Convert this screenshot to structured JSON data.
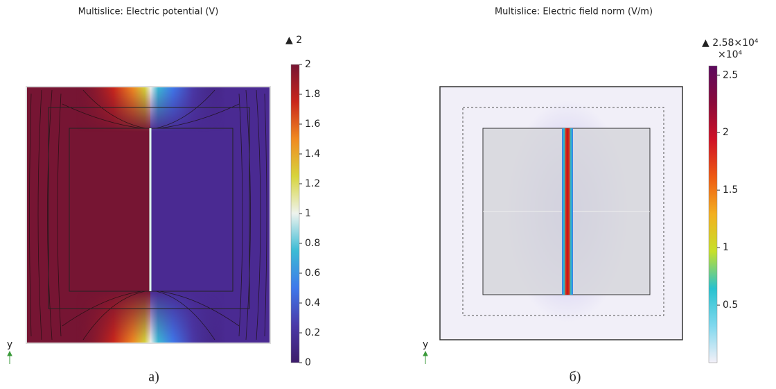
{
  "panels": [
    {
      "title": "Multislice: Electric potential (V)",
      "max_label": "▲ 2",
      "colorbar": {
        "lim": [
          0,
          2
        ],
        "ticks": [
          0,
          0.2,
          0.4,
          0.6,
          0.8,
          1,
          1.2,
          1.4,
          1.6,
          1.8,
          2
        ],
        "colormap": [
          "#3d1c6a",
          "#4a3aa8",
          "#3f78ea",
          "#3bbbd5",
          "#eef3ee",
          "#d7d43c",
          "#f08a22",
          "#c9261c",
          "#761533"
        ]
      },
      "axis_label": "y",
      "caption": "а)"
    },
    {
      "title": "Multislice: Electric field norm (V/m)",
      "max_label": "▲ 2.58×10⁴",
      "multiplier": "×10⁴",
      "colorbar": {
        "lim": [
          0,
          2.58
        ],
        "ticks": [
          0.5,
          1,
          1.5,
          2,
          2.5
        ],
        "colormap": [
          "#f3f0f8",
          "#7fd8ee",
          "#28c2cf",
          "#c7e02a",
          "#f3b020",
          "#ee5a12",
          "#d01226",
          "#8a0a3a",
          "#5c0a5e"
        ]
      },
      "axis_label": "y",
      "caption": "б)"
    }
  ]
}
